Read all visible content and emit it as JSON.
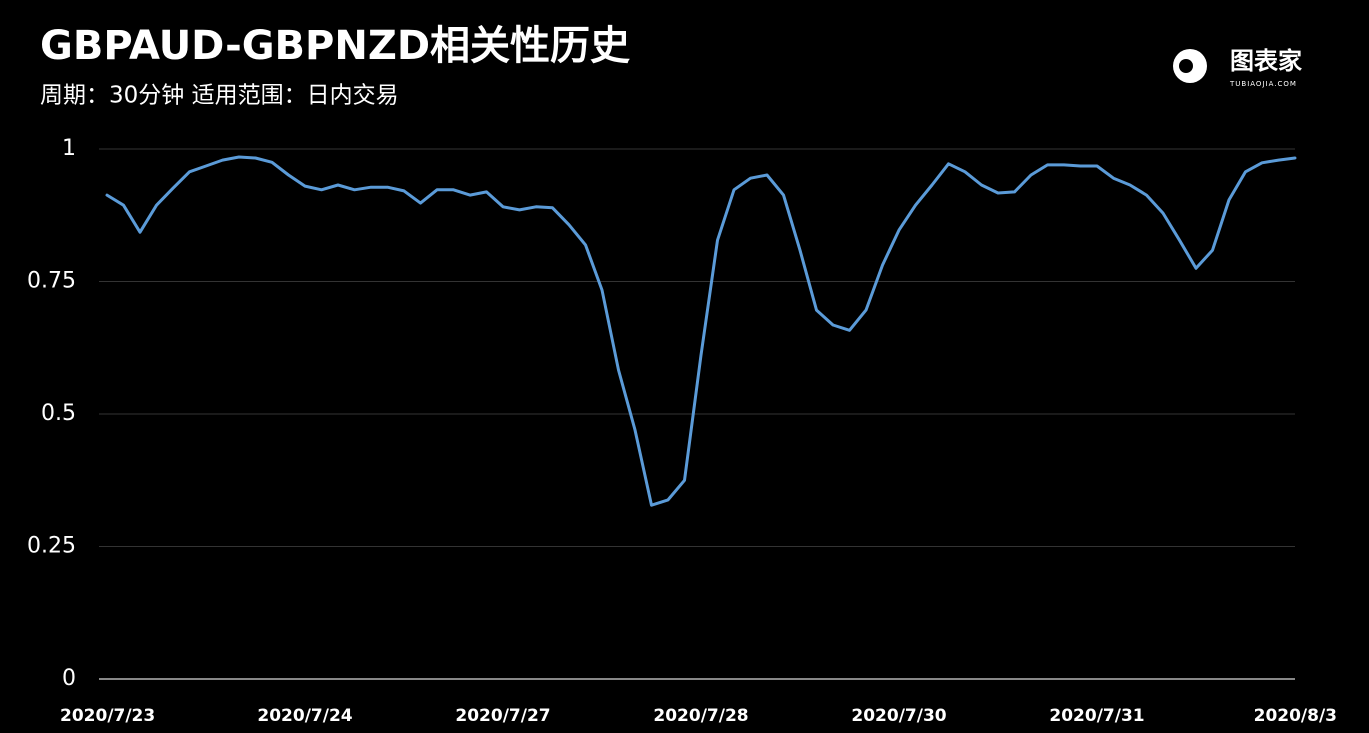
{
  "chart_data": {
    "type": "line",
    "title": "GBPAUD-GBPNZD相关性历史",
    "subtitle": "周期：30分钟  适用范围：日内交易",
    "brand": "图表家",
    "brand_url": "TUBIAOJIA.COM",
    "categories": [
      "2020/7/23",
      null,
      null,
      null,
      null,
      null,
      null,
      null,
      null,
      null,
      null,
      null,
      "2020/7/24",
      null,
      null,
      null,
      null,
      null,
      null,
      null,
      null,
      null,
      null,
      null,
      "2020/7/27",
      null,
      null,
      null,
      null,
      null,
      null,
      null,
      null,
      null,
      null,
      null,
      "2020/7/28",
      null,
      null,
      null,
      null,
      null,
      null,
      null,
      null,
      null,
      null,
      null,
      "2020/7/30",
      null,
      null,
      null,
      null,
      null,
      null,
      null,
      null,
      null,
      null,
      null,
      "2020/7/31",
      null,
      null,
      null,
      null,
      null,
      null,
      null,
      null,
      null,
      null,
      null,
      "2020/8/3"
    ],
    "series": [
      {
        "color": "#5b9bd8",
        "values": [
          0.913,
          0.894,
          0.843,
          0.894,
          0.926,
          0.957,
          0.968,
          0.979,
          0.985,
          0.983,
          0.975,
          0.951,
          0.93,
          0.923,
          0.932,
          0.923,
          0.928,
          0.928,
          0.921,
          0.898,
          0.923,
          0.923,
          0.913,
          0.919,
          0.891,
          0.885,
          0.891,
          0.889,
          0.857,
          0.819,
          0.734,
          0.583,
          0.47,
          0.328,
          0.338,
          0.375,
          0.611,
          0.828,
          0.923,
          0.945,
          0.951,
          0.913,
          0.809,
          0.696,
          0.668,
          0.658,
          0.696,
          0.781,
          0.847,
          0.894,
          0.932,
          0.972,
          0.957,
          0.932,
          0.917,
          0.919,
          0.951,
          0.97,
          0.97,
          0.968,
          0.968,
          0.945,
          0.932,
          0.913,
          0.879,
          0.828,
          0.775,
          0.809,
          0.904,
          0.957,
          0.974,
          0.979,
          0.983
        ]
      }
    ],
    "ylim": [
      0,
      1
    ],
    "yticks": [
      0,
      0.25,
      0.5,
      0.75,
      1
    ],
    "grid": true
  }
}
